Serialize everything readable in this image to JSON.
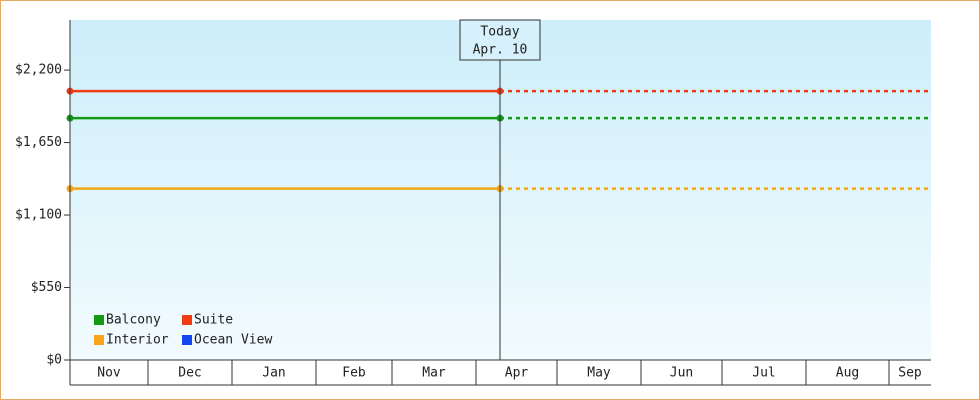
{
  "chart_data": {
    "type": "line",
    "categories": [
      "Nov",
      "Dec",
      "Jan",
      "Feb",
      "Mar",
      "Apr",
      "May",
      "Jun",
      "Jul",
      "Aug",
      "Sep"
    ],
    "ylim": [
      0,
      2580
    ],
    "yticks": [
      {
        "value": 0,
        "label": "$0"
      },
      {
        "value": 550,
        "label": "$550"
      },
      {
        "value": 1100,
        "label": "$1,100"
      },
      {
        "value": 1650,
        "label": "$1,650"
      },
      {
        "value": 2200,
        "label": "$2,200"
      }
    ],
    "annotation": {
      "title": "Today",
      "date": "Apr. 10"
    },
    "series": [
      {
        "name": "Balcony",
        "color": "#139a13",
        "value": 1835
      },
      {
        "name": "Suite",
        "color": "#f03c14",
        "value": 2040
      },
      {
        "name": "Interior",
        "color": "#f5a516",
        "value": 1300
      },
      {
        "name": "Ocean View",
        "color": "#1446f0",
        "value": null
      }
    ]
  }
}
